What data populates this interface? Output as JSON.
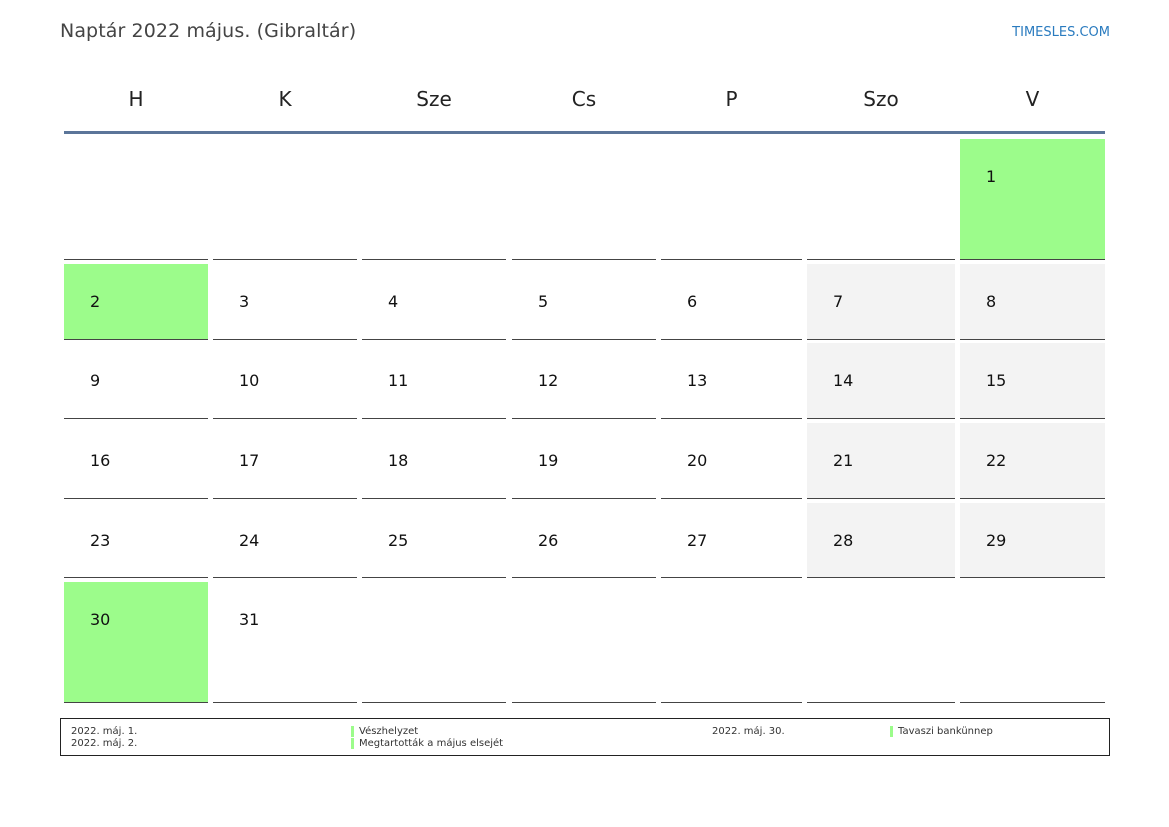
{
  "header": {
    "title": "Naptár 2022 május. (Gibraltár)",
    "brand": "TIMESLES.COM"
  },
  "colors": {
    "holiday": "#9cfc8b",
    "weekend": "#f3f3f3",
    "header_rule": "#5b7599",
    "brand": "#2a7bbf"
  },
  "weekdays": [
    "H",
    "K",
    "Sze",
    "Cs",
    "P",
    "Szo",
    "V"
  ],
  "weeks": [
    [
      {
        "day": "",
        "type": "empty"
      },
      {
        "day": "",
        "type": "empty"
      },
      {
        "day": "",
        "type": "empty"
      },
      {
        "day": "",
        "type": "empty"
      },
      {
        "day": "",
        "type": "empty"
      },
      {
        "day": "",
        "type": "empty"
      },
      {
        "day": "1",
        "type": "holiday"
      }
    ],
    [
      {
        "day": "2",
        "type": "holiday"
      },
      {
        "day": "3",
        "type": "normal"
      },
      {
        "day": "4",
        "type": "normal"
      },
      {
        "day": "5",
        "type": "normal"
      },
      {
        "day": "6",
        "type": "normal"
      },
      {
        "day": "7",
        "type": "weekend"
      },
      {
        "day": "8",
        "type": "weekend"
      }
    ],
    [
      {
        "day": "9",
        "type": "normal"
      },
      {
        "day": "10",
        "type": "normal"
      },
      {
        "day": "11",
        "type": "normal"
      },
      {
        "day": "12",
        "type": "normal"
      },
      {
        "day": "13",
        "type": "normal"
      },
      {
        "day": "14",
        "type": "weekend"
      },
      {
        "day": "15",
        "type": "weekend"
      }
    ],
    [
      {
        "day": "16",
        "type": "normal"
      },
      {
        "day": "17",
        "type": "normal"
      },
      {
        "day": "18",
        "type": "normal"
      },
      {
        "day": "19",
        "type": "normal"
      },
      {
        "day": "20",
        "type": "normal"
      },
      {
        "day": "21",
        "type": "weekend"
      },
      {
        "day": "22",
        "type": "weekend"
      }
    ],
    [
      {
        "day": "23",
        "type": "normal"
      },
      {
        "day": "24",
        "type": "normal"
      },
      {
        "day": "25",
        "type": "normal"
      },
      {
        "day": "26",
        "type": "normal"
      },
      {
        "day": "27",
        "type": "normal"
      },
      {
        "day": "28",
        "type": "weekend"
      },
      {
        "day": "29",
        "type": "weekend"
      }
    ],
    [
      {
        "day": "30",
        "type": "holiday"
      },
      {
        "day": "31",
        "type": "normal"
      },
      {
        "day": "",
        "type": "empty"
      },
      {
        "day": "",
        "type": "empty"
      },
      {
        "day": "",
        "type": "empty"
      },
      {
        "day": "",
        "type": "empty"
      },
      {
        "day": "",
        "type": "empty"
      }
    ]
  ],
  "legend": [
    {
      "date": "2022. máj. 1.",
      "name": "Vészhelyzet"
    },
    {
      "date": "2022. máj. 2.",
      "name": "Megtartották a május elsejét"
    },
    {
      "date": "2022. máj. 30.",
      "name": "Tavaszi bankünnep"
    }
  ]
}
